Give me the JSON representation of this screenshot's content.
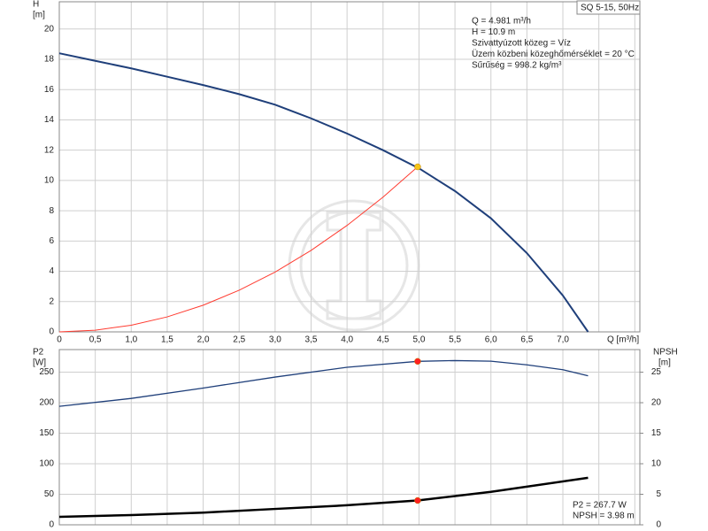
{
  "chart_data": [
    {
      "type": "line",
      "title": "SQ 5-15, 50Hz",
      "x_label": "Q [m³/h]",
      "y_label": [
        "H",
        "[m]"
      ],
      "xlim": [
        0,
        8.07
      ],
      "ylim": [
        0,
        21.8
      ],
      "xticks": [
        0,
        {
          "value": 0.5,
          "label": "0,5"
        },
        {
          "value": 1,
          "label": "1,0"
        },
        {
          "value": 1.5,
          "label": "1,5"
        },
        {
          "value": 2,
          "label": "2,0"
        },
        {
          "value": 2.5,
          "label": "2,5"
        },
        {
          "value": 3,
          "label": "3,0"
        },
        {
          "value": 3.5,
          "label": "3,5"
        },
        {
          "value": 4,
          "label": "4,0"
        },
        {
          "value": 4.5,
          "label": "4,5"
        },
        {
          "value": 5,
          "label": "5,0"
        },
        {
          "value": 5.5,
          "label": "5,5"
        },
        {
          "value": 6,
          "label": "6,0"
        },
        {
          "value": 6.5,
          "label": "6,5"
        },
        {
          "value": 7,
          "label": "7,0"
        },
        {
          "value": 7.5,
          "label": ""
        },
        {
          "value": 8,
          "label": ""
        }
      ],
      "yticks": [
        0,
        2,
        4,
        6,
        8,
        10,
        12,
        14,
        16,
        18,
        20
      ],
      "grid": true,
      "series": [
        {
          "color": "#1f3f7a",
          "width": 2,
          "x": [
            0,
            0.5,
            1,
            1.5,
            2,
            2.5,
            3,
            3.5,
            4,
            4.5,
            5,
            5.5,
            6,
            6.5,
            7,
            7.35
          ],
          "values": [
            18.4,
            17.9,
            17.4,
            16.85,
            16.3,
            15.7,
            15.0,
            14.1,
            13.1,
            12.0,
            10.8,
            9.3,
            7.5,
            5.2,
            2.4,
            0
          ]
        },
        {
          "color": "#ff3b30",
          "width": 1,
          "x": [
            0,
            0.5,
            1,
            1.5,
            2,
            2.5,
            3,
            3.5,
            4,
            4.5,
            4.981
          ],
          "values": [
            0,
            0.11,
            0.44,
            0.99,
            1.76,
            2.75,
            3.95,
            5.38,
            7.03,
            8.9,
            10.9
          ]
        }
      ],
      "points": [
        {
          "x": 4.981,
          "y": 10.9,
          "color": "#f5c518"
        }
      ],
      "annotations": [
        "Q = 4.981 m³/h",
        "H = 10.9 m",
        "Szivattyúzott közeg = Víz",
        "Üzem közbeni közeghőmérséklet = 20 °C",
        "Sűrűség = 998.2 kg/m³"
      ]
    },
    {
      "type": "line",
      "y_label": [
        "P2",
        "[W]"
      ],
      "y2_label": [
        "NPSH",
        "[m]"
      ],
      "xlim": [
        0,
        8.07
      ],
      "ylim": [
        0,
        287
      ],
      "y2lim": [
        0,
        28.7
      ],
      "yticks": [
        0,
        50,
        100,
        150,
        200,
        250
      ],
      "y2ticks": [
        0,
        5,
        10,
        15,
        20,
        25
      ],
      "grid": true,
      "series": [
        {
          "color": "#1f3f7a",
          "width": 1.3,
          "x": [
            0,
            1,
            2,
            3,
            4,
            4.981,
            5.5,
            6,
            6.5,
            7,
            7.35
          ],
          "values": [
            194,
            207,
            224,
            242,
            258,
            267.7,
            269,
            268,
            262,
            254,
            244
          ]
        },
        {
          "color": "#000000",
          "width": 2.5,
          "axis": "y2",
          "x": [
            0,
            1,
            2,
            3,
            4,
            4.981,
            6,
            7.35
          ],
          "values": [
            1.3,
            1.6,
            2.0,
            2.6,
            3.2,
            3.98,
            5.4,
            7.7
          ]
        }
      ],
      "points": [
        {
          "x": 4.981,
          "y": 267.7,
          "color": "#ff2020"
        },
        {
          "x": 4.981,
          "y": 3.98,
          "color": "#ff2020",
          "axis": "y2"
        }
      ],
      "annotations": [
        "P2 = 267.7 W",
        "NPSH = 3.98 m"
      ]
    }
  ]
}
